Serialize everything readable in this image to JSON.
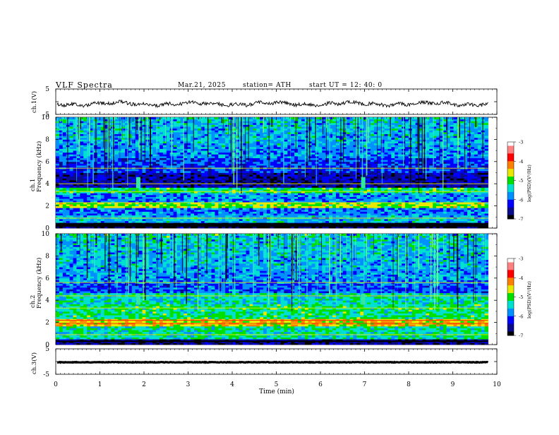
{
  "header": {
    "title": "VLF  Spectra",
    "date": "Mar.21, 2025",
    "station": "station= ATH",
    "start": "start  UT  =   12: 40: 0"
  },
  "chart_data": [
    {
      "type": "line",
      "panel": "ch1-waveform",
      "ylabel": "ch.1(V)",
      "ylim": [
        -5,
        5
      ],
      "yticks": [
        "5",
        "-5"
      ],
      "xlim": [
        0,
        10
      ],
      "color": "#000000"
    },
    {
      "type": "heatmap",
      "panel": "ch1-spectrogram",
      "ylabel": "ch.1\nFrequency (kHz)",
      "ylabel_line1": "ch.1",
      "ylabel_line2": "Frequency (kHz)",
      "ylim": [
        0,
        10
      ],
      "yticks": [
        "0",
        "2",
        "4",
        "6",
        "8",
        "10"
      ],
      "colorbar": {
        "label": "log(PSD)(V²/Hz)",
        "ticks": [
          "-3",
          "-4",
          "-5",
          "-6",
          "-7"
        ],
        "range": [
          -7,
          -3
        ]
      },
      "bursts_min": [
        1.87,
        6.97
      ]
    },
    {
      "type": "heatmap",
      "panel": "ch2-spectrogram",
      "ylabel": "ch.2\nFrequency (kHz)",
      "ylabel_line1": "ch.2",
      "ylabel_line2": "Frequency (kHz)",
      "ylim": [
        0,
        10
      ],
      "yticks": [
        "0",
        "2",
        "4",
        "6",
        "8",
        "10"
      ],
      "colorbar": {
        "label": "log(PSD)(V²/Hz)",
        "ticks": [
          "-3",
          "-4",
          "-5",
          "-6",
          "-7"
        ],
        "range": [
          -7,
          -3
        ]
      },
      "bursts_min": [
        1.87,
        6.97
      ]
    },
    {
      "type": "line",
      "panel": "ch3-waveform",
      "ylabel": "ch.3(V)",
      "ylim": [
        -5,
        5
      ],
      "yticks": [
        "5",
        "-5"
      ],
      "xlim": [
        0,
        10
      ],
      "color": "#000000"
    }
  ],
  "x_axis": {
    "label": "Time  (min)",
    "ticks": [
      "0",
      "1",
      "2",
      "3",
      "4",
      "5",
      "6",
      "7",
      "8",
      "9",
      "10"
    ],
    "data_end_min": 9.8
  },
  "colors": {
    "scale": [
      "#000000",
      "#0a0a8c",
      "#0000ff",
      "#0090ff",
      "#00e0d0",
      "#00e000",
      "#e8e800",
      "#ff8000",
      "#ff0000",
      "#ff8080",
      "#ffffff"
    ]
  }
}
